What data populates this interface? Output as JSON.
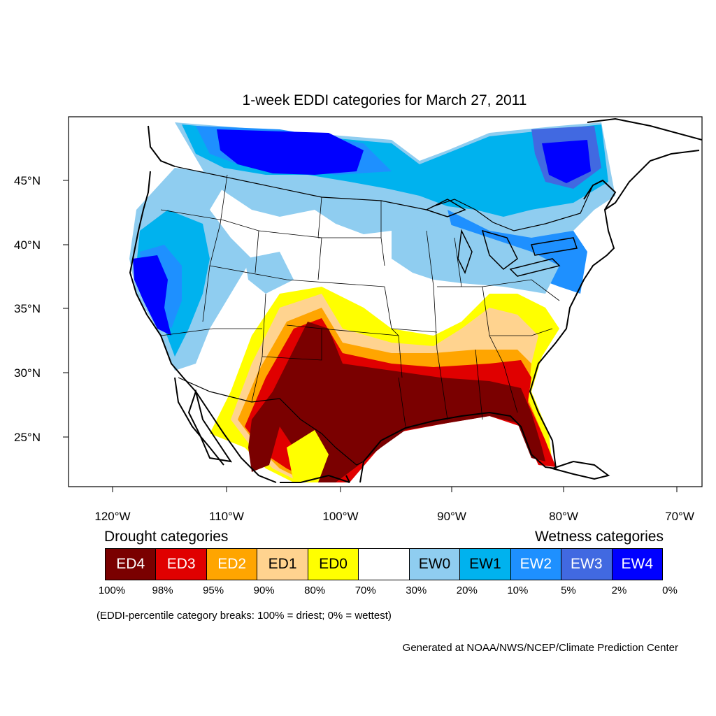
{
  "title": "1-week EDDI categories for March 27, 2011",
  "map": {
    "lat_ticks": [
      "45°N",
      "40°N",
      "35°N",
      "30°N",
      "25°N"
    ],
    "lon_ticks": [
      "120°W",
      "110°W",
      "100°W",
      "90°W",
      "80°W",
      "70°W"
    ]
  },
  "legend": {
    "drought_heading": "Drought categories",
    "wetness_heading": "Wetness categories",
    "categories": [
      {
        "label": "ED4",
        "color": "#7a0000",
        "text_color": "#ffffff"
      },
      {
        "label": "ED3",
        "color": "#e00000",
        "text_color": "#ffffff"
      },
      {
        "label": "ED2",
        "color": "#ffa500",
        "text_color": "#ffffff"
      },
      {
        "label": "ED1",
        "color": "#ffd38f",
        "text_color": "#000000"
      },
      {
        "label": "ED0",
        "color": "#ffff00",
        "text_color": "#000000"
      },
      {
        "label": "",
        "color": "#ffffff",
        "text_color": "#000000"
      },
      {
        "label": "EW0",
        "color": "#8fcdf0",
        "text_color": "#000000"
      },
      {
        "label": "EW1",
        "color": "#00b2ee",
        "text_color": "#000000"
      },
      {
        "label": "EW2",
        "color": "#1e90ff",
        "text_color": "#ffffff"
      },
      {
        "label": "EW3",
        "color": "#4169e1",
        "text_color": "#ffffff"
      },
      {
        "label": "EW4",
        "color": "#0000ff",
        "text_color": "#ffffff"
      }
    ],
    "breaks": [
      "100%",
      "98%",
      "95%",
      "90%",
      "80%",
      "70%",
      "30%",
      "20%",
      "10%",
      "5%",
      "2%",
      "0%"
    ]
  },
  "note": "(EDDI-percentile category breaks: 100% = driest; 0% = wettest)",
  "credit": "Generated at NOAA/NWS/NCEP/Climate Prediction Center"
}
